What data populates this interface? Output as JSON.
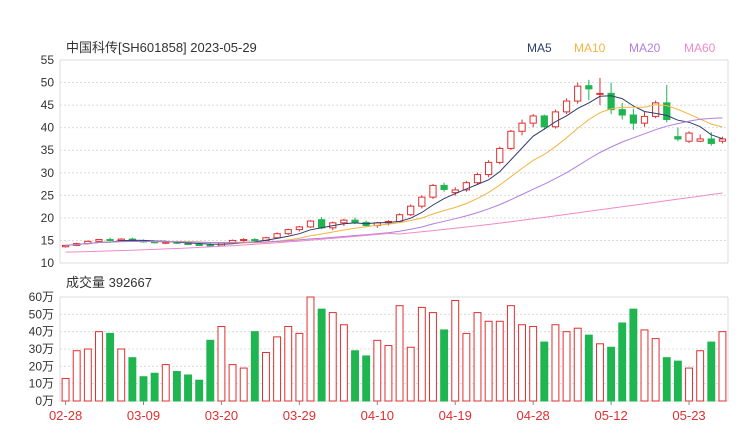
{
  "chart_data": {
    "type": "candlestick",
    "title": "中国科传[SH601858] 2023-05-29",
    "legend": [
      "MA5",
      "MA10",
      "MA20",
      "MA60"
    ],
    "colors": {
      "up": "#e03030",
      "down": "#1fb550",
      "text": "#333333",
      "date": "#e03030",
      "grid": "#dcdcdc",
      "axis": "#888888",
      "ma5": "#2f3d6b",
      "ma10": "#f2b441",
      "ma20": "#b27ee0",
      "ma60": "#f08ac8"
    },
    "price_axis": {
      "ticks": [
        "55",
        "50",
        "45",
        "40",
        "35",
        "30",
        "25",
        "20",
        "15",
        "10"
      ],
      "min": 10,
      "max": 55
    },
    "volume_label": "成交量 392667",
    "volume_axis": {
      "ticks": [
        "60万",
        "50万",
        "40万",
        "30万",
        "20万",
        "10万",
        "0万"
      ],
      "min": 0,
      "max": 60
    },
    "x_labels": [
      {
        "label": "02-28",
        "index": 0
      },
      {
        "label": "03-09",
        "index": 7
      },
      {
        "label": "03-20",
        "index": 14
      },
      {
        "label": "03-29",
        "index": 21
      },
      {
        "label": "04-10",
        "index": 28
      },
      {
        "label": "04-19",
        "index": 35
      },
      {
        "label": "04-28",
        "index": 42
      },
      {
        "label": "05-12",
        "index": 49
      },
      {
        "label": "05-23",
        "index": 56
      }
    ],
    "ohlc": [
      [
        13.6,
        14.0,
        13.4,
        13.9
      ],
      [
        13.9,
        14.5,
        13.8,
        14.3
      ],
      [
        14.3,
        15.0,
        14.1,
        14.8
      ],
      [
        14.8,
        15.3,
        14.6,
        15.2
      ],
      [
        15.2,
        15.6,
        14.8,
        15.0
      ],
      [
        15.0,
        15.5,
        14.8,
        15.3
      ],
      [
        15.3,
        15.6,
        14.8,
        14.9
      ],
      [
        14.9,
        15.2,
        14.5,
        14.7
      ],
      [
        14.7,
        15.0,
        14.3,
        14.5
      ],
      [
        14.5,
        14.8,
        14.2,
        14.6
      ],
      [
        14.6,
        14.9,
        14.2,
        14.4
      ],
      [
        14.4,
        14.7,
        14.0,
        14.1
      ],
      [
        14.1,
        14.5,
        13.8,
        14.0
      ],
      [
        14.0,
        14.4,
        13.7,
        13.8
      ],
      [
        13.8,
        14.6,
        13.7,
        14.5
      ],
      [
        14.5,
        15.2,
        14.3,
        15.0
      ],
      [
        15.0,
        15.5,
        14.7,
        15.2
      ],
      [
        15.2,
        15.5,
        14.8,
        15.0
      ],
      [
        15.0,
        15.8,
        14.9,
        15.6
      ],
      [
        15.6,
        16.8,
        15.4,
        16.5
      ],
      [
        16.5,
        17.6,
        16.2,
        17.4
      ],
      [
        17.4,
        18.2,
        17.0,
        18.0
      ],
      [
        18.0,
        19.5,
        17.8,
        19.3
      ],
      [
        19.6,
        20.2,
        17.5,
        17.8
      ],
      [
        17.8,
        19.2,
        17.3,
        18.9
      ],
      [
        18.9,
        19.8,
        18.2,
        19.5
      ],
      [
        19.5,
        20.1,
        18.6,
        19.0
      ],
      [
        19.0,
        19.4,
        18.1,
        18.3
      ],
      [
        18.3,
        19.1,
        17.8,
        18.9
      ],
      [
        18.9,
        19.5,
        18.3,
        19.2
      ],
      [
        19.2,
        21.0,
        19.0,
        20.7
      ],
      [
        20.7,
        23.0,
        20.4,
        22.6
      ],
      [
        22.6,
        25.0,
        22.1,
        24.6
      ],
      [
        24.6,
        27.5,
        24.2,
        27.2
      ],
      [
        27.2,
        27.8,
        25.8,
        26.3
      ],
      [
        25.6,
        26.8,
        24.9,
        26.2
      ],
      [
        26.2,
        28.2,
        25.8,
        27.8
      ],
      [
        27.8,
        30.0,
        27.4,
        29.6
      ],
      [
        29.6,
        32.8,
        29.0,
        32.3
      ],
      [
        32.3,
        35.8,
        31.9,
        35.4
      ],
      [
        35.4,
        39.5,
        35.0,
        39.2
      ],
      [
        39.2,
        41.8,
        38.3,
        41.0
      ],
      [
        41.0,
        43.0,
        40.1,
        42.6
      ],
      [
        42.6,
        42.9,
        39.5,
        40.2
      ],
      [
        40.2,
        44.0,
        39.8,
        43.5
      ],
      [
        43.5,
        46.5,
        43.0,
        45.9
      ],
      [
        45.9,
        50.0,
        45.3,
        49.2
      ],
      [
        49.3,
        50.6,
        46.1,
        48.6
      ],
      [
        47.6,
        51.0,
        45.0,
        47.6
      ],
      [
        47.6,
        50.0,
        43.0,
        44.0
      ],
      [
        44.0,
        45.5,
        41.8,
        42.8
      ],
      [
        42.8,
        44.2,
        39.5,
        41.0
      ],
      [
        41.0,
        43.5,
        40.2,
        42.5
      ],
      [
        42.5,
        46.0,
        42.1,
        45.5
      ],
      [
        45.5,
        49.5,
        41.2,
        41.8
      ],
      [
        38.0,
        40.0,
        37.0,
        37.5
      ],
      [
        37.0,
        39.2,
        36.6,
        38.8
      ],
      [
        37.0,
        38.5,
        36.8,
        37.5
      ],
      [
        37.5,
        39.0,
        36.0,
        36.5
      ],
      [
        37.0,
        38.0,
        36.5,
        37.5
      ]
    ],
    "volume": [
      13,
      29,
      30,
      40,
      39,
      30,
      25,
      14,
      16,
      21,
      17,
      15,
      12,
      35,
      43,
      21,
      19,
      40,
      28,
      37,
      43,
      39,
      60,
      53,
      51,
      44,
      29,
      26,
      35,
      32,
      55,
      31,
      54,
      51,
      41,
      58,
      39,
      51,
      46,
      46,
      55,
      44,
      43,
      34,
      44,
      40,
      42,
      38,
      33,
      31,
      45,
      53,
      41,
      36,
      25,
      23,
      19,
      29,
      34,
      40
    ]
  }
}
